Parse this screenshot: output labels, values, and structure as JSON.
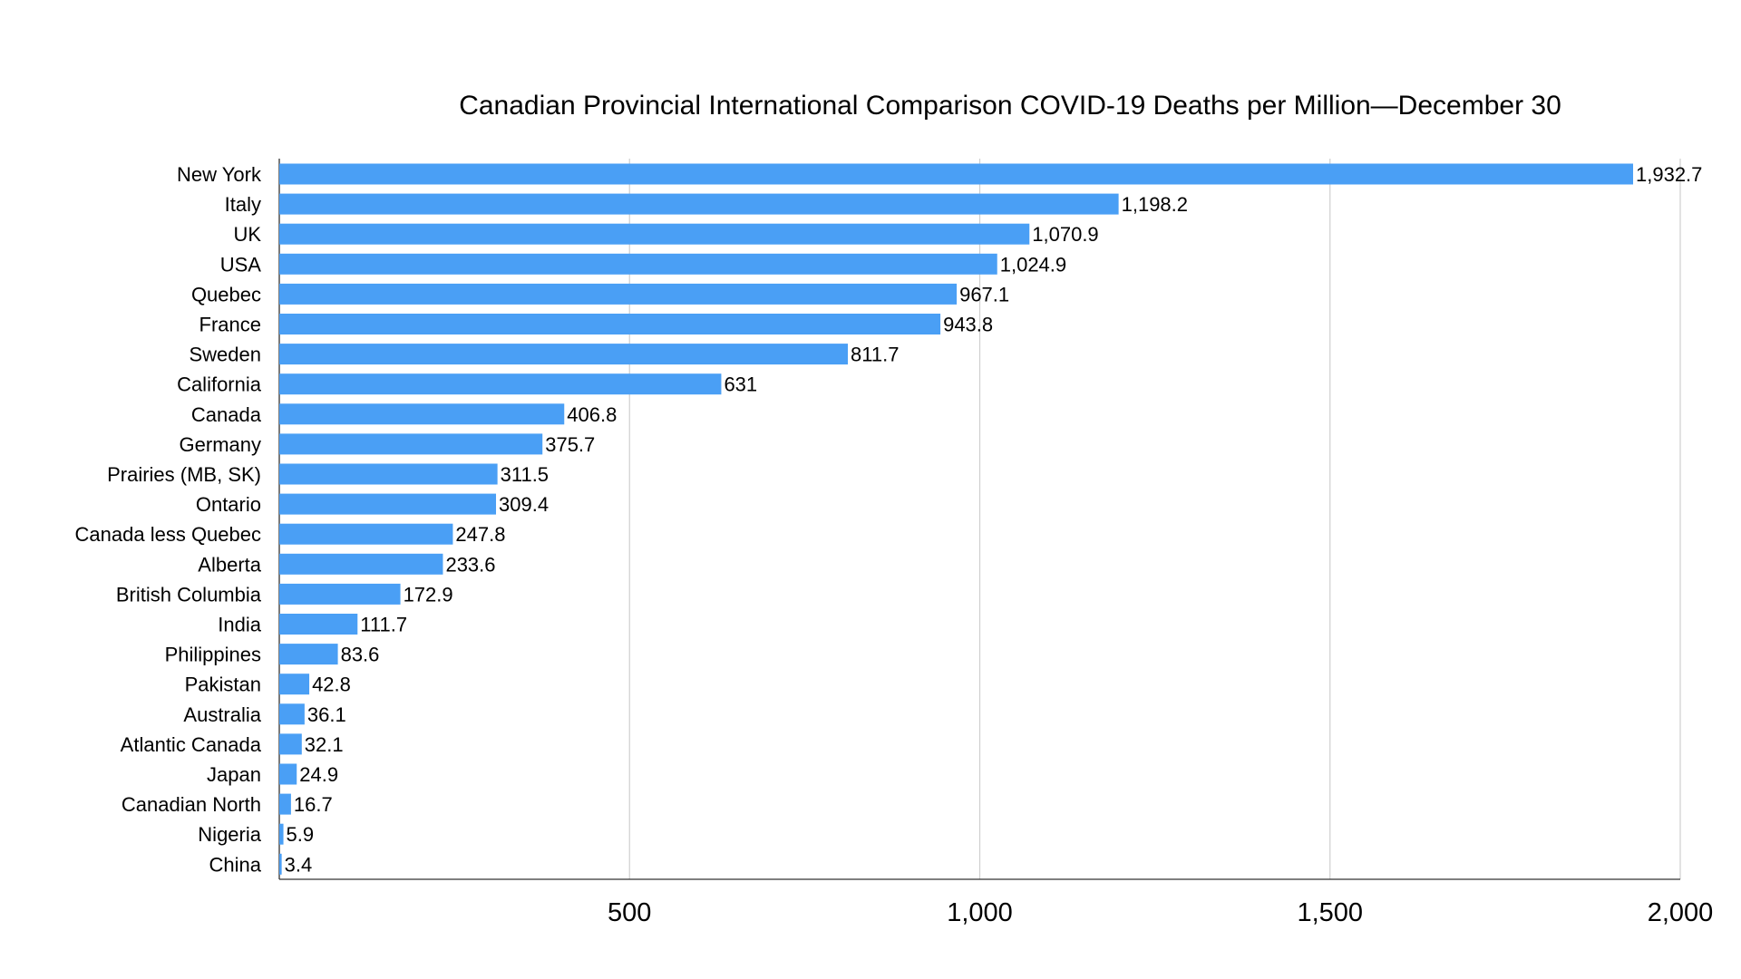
{
  "chart_data": {
    "type": "bar",
    "orientation": "horizontal",
    "title": "Canadian Provincial International Comparison COVID-19 Deaths per Million—December 30",
    "xlabel": "",
    "ylabel": "",
    "xlim": [
      0,
      2000
    ],
    "xticks": [
      500,
      1000,
      1500,
      2000
    ],
    "xtick_labels": [
      "500",
      "1,000",
      "1,500",
      "2,000"
    ],
    "grid": "vertical",
    "legend": "none",
    "bar_color": "#4a9ff5",
    "categories": [
      "New York",
      "Italy",
      "UK",
      "USA",
      "Quebec",
      "France",
      "Sweden",
      "California",
      "Canada",
      "Germany",
      "Prairies (MB, SK)",
      "Ontario",
      "Canada less Quebec",
      "Alberta",
      "British Columbia",
      "India",
      "Philippines",
      "Pakistan",
      "Australia",
      "Atlantic Canada",
      "Japan",
      "Canadian North",
      "Nigeria",
      "China"
    ],
    "values": [
      1932.7,
      1198.2,
      1070.9,
      1024.9,
      967.1,
      943.8,
      811.7,
      631,
      406.8,
      375.7,
      311.5,
      309.4,
      247.8,
      233.6,
      172.9,
      111.7,
      83.6,
      42.8,
      36.1,
      32.1,
      24.9,
      16.7,
      5.9,
      3.4
    ],
    "value_labels": [
      "1,932.7",
      "1,198.2",
      "1,070.9",
      "1,024.9",
      "967.1",
      "943.8",
      "811.7",
      "631",
      "406.8",
      "375.7",
      "311.5",
      "309.4",
      "247.8",
      "233.6",
      "172.9",
      "111.7",
      "83.6",
      "42.8",
      "36.1",
      "32.1",
      "24.9",
      "16.7",
      "5.9",
      "3.4"
    ]
  }
}
